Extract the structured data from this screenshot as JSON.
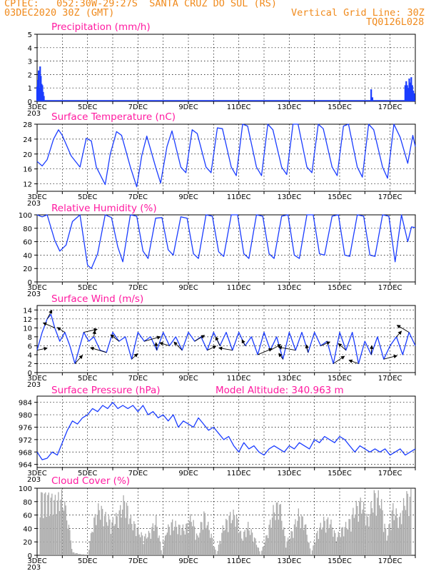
{
  "header": {
    "line1": "CPTEC:   052:30W-29:27S  SANTA CRUZ DO SUL (RS)",
    "line2_left": "03DEC2020 30Z (GMT)",
    "line2_right": "Vertical Grid Line: 30Z",
    "line3_right": "TQ0126L028"
  },
  "colors": {
    "header": "#f08a1c",
    "title": "#ff1aa0",
    "line": "#1a3cff",
    "cloud": "#a9a9a9"
  },
  "x_axis": {
    "days": [
      "3DEC",
      "5DEC",
      "7DEC",
      "9DEC",
      "11DEC",
      "13DEC",
      "15DEC",
      "17DEC"
    ],
    "start_day": 3,
    "end_day": 18,
    "major_step_days": 2,
    "footer_fragment": "203"
  },
  "panels": {
    "precip": {
      "title": "Precipitation (mm/h)"
    },
    "temp": {
      "title": "Surface Temperature (nC)"
    },
    "rh": {
      "title": "Relative Humidity (%)"
    },
    "wind": {
      "title": "Surface Wind (m/s)"
    },
    "pressure": {
      "title": "Surface Pressure (hPa)",
      "altitude": "Model Altitude: 340.963 m"
    },
    "cloud": {
      "title": "Cloud Cover (%)"
    }
  },
  "chart_data": [
    {
      "id": "precip",
      "type": "bar",
      "title": "Precipitation (mm/h)",
      "ylim": [
        0,
        5
      ],
      "yticks": [
        0,
        1,
        2,
        3,
        4,
        5
      ],
      "series": [
        {
          "name": "",
          "values": [
            [
              3.0,
              1.1
            ],
            [
              3.03,
              1.6
            ],
            [
              3.06,
              2.3
            ],
            [
              3.09,
              1.0
            ],
            [
              3.12,
              2.6
            ],
            [
              3.15,
              1.9
            ],
            [
              3.18,
              1.3
            ],
            [
              3.21,
              1.2
            ],
            [
              3.24,
              0.7
            ],
            [
              3.27,
              0.4
            ],
            [
              16.25,
              0.9
            ],
            [
              16.3,
              0.3
            ],
            [
              17.6,
              1.2
            ],
            [
              17.64,
              1.5
            ],
            [
              17.68,
              1.2
            ],
            [
              17.72,
              1.0
            ],
            [
              17.76,
              1.7
            ],
            [
              17.8,
              1.4
            ],
            [
              17.84,
              1.8
            ],
            [
              17.88,
              1.2
            ],
            [
              17.92,
              0.8
            ],
            [
              17.96,
              0.6
            ]
          ]
        }
      ]
    },
    {
      "id": "temp",
      "type": "line",
      "title": "Surface Temperature (nC)",
      "ylim": [
        10,
        28
      ],
      "yticks": [
        12,
        16,
        20,
        24,
        28
      ],
      "x": [
        3.0,
        3.2,
        3.4,
        3.65,
        3.85,
        4.0,
        4.35,
        4.7,
        4.95,
        5.15,
        5.35,
        5.7,
        5.9,
        6.15,
        6.35,
        6.7,
        6.95,
        7.15,
        7.35,
        7.7,
        7.9,
        8.15,
        8.35,
        8.7,
        8.9,
        9.15,
        9.35,
        9.7,
        9.9,
        10.15,
        10.35,
        10.7,
        10.9,
        11.15,
        11.35,
        11.7,
        11.9,
        12.15,
        12.35,
        12.7,
        12.9,
        13.15,
        13.35,
        13.7,
        13.9,
        14.15,
        14.35,
        14.7,
        14.9,
        15.15,
        15.35,
        15.7,
        15.9,
        16.15,
        16.35,
        16.7,
        16.9,
        17.15,
        17.4,
        17.7,
        17.9,
        18.0
      ],
      "series": [
        {
          "name": "",
          "values": [
            18,
            16.8,
            18.5,
            24,
            26.5,
            25,
            19.5,
            16.5,
            24.2,
            23.5,
            16.5,
            11.8,
            20,
            26,
            25,
            16.5,
            11.2,
            19.5,
            24.8,
            16.5,
            12.2,
            22,
            26.2,
            16.5,
            15,
            26.5,
            25.5,
            16.5,
            15,
            27,
            26.8,
            16.5,
            14.2,
            28,
            27.5,
            16.5,
            14.2,
            28,
            26.5,
            16.5,
            14.5,
            28,
            28,
            16.5,
            15,
            28,
            26.8,
            16.5,
            14.2,
            27.5,
            28,
            16.5,
            13.8,
            28,
            26.5,
            16.5,
            13.5,
            28,
            24.5,
            17.5,
            25,
            22
          ]
        }
      ]
    },
    {
      "id": "rh",
      "type": "line",
      "title": "Relative Humidity (%)",
      "ylim": [
        0,
        100
      ],
      "yticks": [
        0,
        20,
        40,
        60,
        80,
        100
      ],
      "x": [
        3.0,
        3.2,
        3.4,
        3.7,
        3.9,
        4.15,
        4.4,
        4.7,
        5.0,
        5.15,
        5.4,
        5.7,
        5.95,
        6.2,
        6.4,
        6.7,
        6.95,
        7.2,
        7.4,
        7.7,
        7.95,
        8.2,
        8.4,
        8.7,
        8.95,
        9.2,
        9.4,
        9.7,
        9.95,
        10.2,
        10.4,
        10.7,
        10.95,
        11.2,
        11.4,
        11.7,
        11.95,
        12.2,
        12.4,
        12.7,
        12.95,
        13.2,
        13.4,
        13.7,
        13.95,
        14.2,
        14.4,
        14.7,
        14.95,
        15.2,
        15.4,
        15.7,
        15.95,
        16.2,
        16.4,
        16.7,
        16.95,
        17.2,
        17.45,
        17.7,
        17.85,
        18.0
      ],
      "series": [
        {
          "name": "",
          "values": [
            100,
            97,
            100,
            62,
            46,
            55,
            90,
            100,
            25,
            20,
            42,
            100,
            96,
            52,
            30,
            100,
            98,
            46,
            35,
            95,
            96,
            48,
            40,
            97,
            95,
            42,
            35,
            100,
            98,
            45,
            38,
            100,
            100,
            42,
            35,
            100,
            98,
            42,
            35,
            98,
            100,
            40,
            35,
            100,
            100,
            42,
            40,
            98,
            100,
            40,
            38,
            100,
            98,
            40,
            38,
            100,
            98,
            30,
            100,
            60,
            82,
            81
          ]
        }
      ]
    },
    {
      "id": "wind",
      "type": "line",
      "title": "Surface Wind (m/s)",
      "ylim": [
        0,
        15
      ],
      "yticks": [
        0,
        2,
        4,
        6,
        8,
        10,
        12,
        14
      ],
      "x": [
        3.0,
        3.2,
        3.4,
        3.55,
        3.7,
        3.9,
        4.1,
        4.3,
        4.5,
        4.65,
        4.85,
        5.05,
        5.25,
        5.5,
        5.75,
        6.0,
        6.25,
        6.5,
        6.75,
        7.0,
        7.25,
        7.5,
        7.75,
        8.0,
        8.25,
        8.5,
        8.75,
        9.0,
        9.25,
        9.5,
        9.75,
        10.0,
        10.25,
        10.5,
        10.75,
        11.0,
        11.25,
        11.5,
        11.75,
        12.0,
        12.25,
        12.5,
        12.75,
        13.0,
        13.25,
        13.5,
        13.75,
        14.0,
        14.25,
        14.5,
        14.75,
        15.0,
        15.25,
        15.5,
        15.75,
        16.0,
        16.25,
        16.5,
        16.75,
        17.0,
        17.25,
        17.5,
        17.75,
        18.0
      ],
      "series": [
        {
          "name": "speed",
          "values": [
            5,
            9,
            12,
            13,
            10,
            7,
            9,
            6,
            2,
            5,
            9,
            7,
            8,
            5,
            4.5,
            9,
            7,
            8,
            3,
            9,
            7,
            8,
            5,
            9,
            6,
            8,
            5,
            9,
            7,
            8,
            5,
            9,
            6,
            9,
            5,
            9,
            6,
            8,
            4,
            9,
            5,
            8,
            3,
            9,
            5,
            9,
            4.5,
            9,
            6,
            7,
            2,
            9,
            5,
            9,
            2,
            7,
            4,
            8,
            3,
            6,
            8,
            4,
            9,
            6
          ]
        }
      ],
      "arrows_visible": true
    },
    {
      "id": "pressure",
      "type": "line",
      "title": "Surface Pressure (hPa)",
      "ylim": [
        963,
        986
      ],
      "yticks": [
        964,
        968,
        972,
        976,
        980,
        984
      ],
      "x": [
        3.0,
        3.2,
        3.4,
        3.6,
        3.8,
        4.0,
        4.2,
        4.4,
        4.6,
        4.8,
        5.0,
        5.2,
        5.4,
        5.6,
        5.8,
        6.0,
        6.2,
        6.4,
        6.6,
        6.8,
        7.0,
        7.2,
        7.4,
        7.6,
        7.8,
        8.0,
        8.2,
        8.4,
        8.6,
        8.8,
        9.0,
        9.2,
        9.4,
        9.6,
        9.8,
        10.0,
        10.2,
        10.4,
        10.6,
        10.8,
        11.0,
        11.2,
        11.4,
        11.6,
        11.8,
        12.0,
        12.2,
        12.4,
        12.6,
        12.8,
        13.0,
        13.2,
        13.4,
        13.6,
        13.8,
        14.0,
        14.2,
        14.4,
        14.6,
        14.8,
        15.0,
        15.2,
        15.4,
        15.6,
        15.8,
        16.0,
        16.2,
        16.4,
        16.6,
        16.8,
        17.0,
        17.2,
        17.4,
        17.6,
        17.8,
        18.0
      ],
      "series": [
        {
          "name": "",
          "values": [
            968,
            965.5,
            966,
            968,
            967,
            971,
            975,
            978,
            977,
            979,
            980,
            982,
            981,
            983,
            982,
            984,
            982,
            983,
            982,
            983,
            981,
            983,
            980,
            981,
            979,
            980,
            978,
            980,
            976,
            978,
            977,
            976,
            979,
            977,
            975,
            976,
            974,
            972,
            973,
            970,
            968,
            971,
            969,
            970,
            968,
            967,
            969,
            970,
            969,
            968,
            970,
            969,
            971,
            970,
            969,
            972,
            971,
            973,
            972,
            971,
            973,
            972,
            970,
            968,
            970,
            969,
            968,
            969,
            968,
            969,
            967,
            968,
            969,
            967,
            968,
            969
          ]
        }
      ]
    },
    {
      "id": "cloud",
      "type": "bar",
      "title": "Cloud Cover (%)",
      "ylim": [
        0,
        100
      ],
      "yticks": [
        0,
        20,
        40,
        60,
        80,
        100
      ],
      "series": [
        {
          "name": "",
          "values": [
            [
              3.1,
              100
            ],
            [
              3.4,
              98
            ],
            [
              3.7,
              92
            ],
            [
              4.0,
              100
            ],
            [
              4.2,
              60
            ],
            [
              4.4,
              5
            ],
            [
              4.7,
              2
            ],
            [
              5.0,
              1
            ],
            [
              5.2,
              55
            ],
            [
              5.45,
              82
            ],
            [
              5.7,
              65
            ],
            [
              5.95,
              55
            ],
            [
              6.2,
              68
            ],
            [
              6.45,
              94
            ],
            [
              6.7,
              60
            ],
            [
              6.95,
              45
            ],
            [
              7.2,
              30
            ],
            [
              7.45,
              38
            ],
            [
              7.7,
              60
            ],
            [
              7.95,
              2
            ],
            [
              8.1,
              42
            ],
            [
              8.35,
              55
            ],
            [
              8.6,
              48
            ],
            [
              8.85,
              45
            ],
            [
              9.1,
              65
            ],
            [
              9.35,
              30
            ],
            [
              9.6,
              70
            ],
            [
              9.85,
              40
            ],
            [
              10.1,
              2
            ],
            [
              10.35,
              45
            ],
            [
              10.6,
              65
            ],
            [
              10.85,
              70
            ],
            [
              11.1,
              30
            ],
            [
              11.35,
              50
            ],
            [
              11.6,
              30
            ],
            [
              11.85,
              2
            ],
            [
              12.1,
              35
            ],
            [
              12.35,
              75
            ],
            [
              12.6,
              88
            ],
            [
              12.85,
              20
            ],
            [
              13.1,
              40
            ],
            [
              13.35,
              70
            ],
            [
              13.6,
              55
            ],
            [
              13.85,
              2
            ],
            [
              14.1,
              40
            ],
            [
              14.35,
              58
            ],
            [
              14.6,
              58
            ],
            [
              14.85,
              30
            ],
            [
              15.1,
              45
            ],
            [
              15.35,
              55
            ],
            [
              15.6,
              80
            ],
            [
              15.85,
              90
            ],
            [
              16.1,
              60
            ],
            [
              16.35,
              100
            ],
            [
              16.6,
              96
            ],
            [
              16.85,
              30
            ],
            [
              17.1,
              80
            ],
            [
              17.35,
              60
            ],
            [
              17.6,
              98
            ],
            [
              17.85,
              100
            ]
          ]
        }
      ]
    }
  ]
}
